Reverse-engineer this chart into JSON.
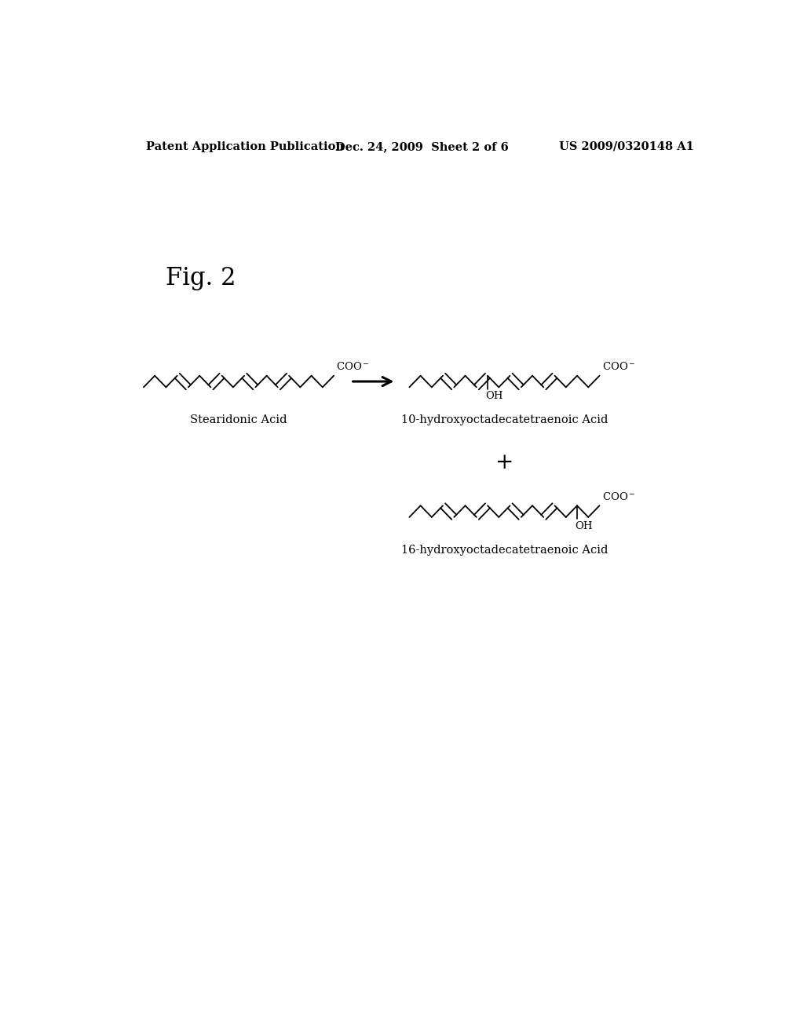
{
  "header_left": "Patent Application Publication",
  "header_center": "Dec. 24, 2009  Sheet 2 of 6",
  "header_right": "US 2009/0320148 A1",
  "fig_label": "Fig. 2",
  "molecule1_label": "Stearidonic Acid",
  "molecule2_label": "10-hydroxyoctadecatetraenoic Acid",
  "molecule3_label": "16-hydroxyoctadecatetraenoic Acid",
  "background_color": "#ffffff",
  "text_color": "#000000",
  "header_fontsize": 10.5,
  "fig_label_fontsize": 22,
  "mol_label_fontsize": 10.5
}
